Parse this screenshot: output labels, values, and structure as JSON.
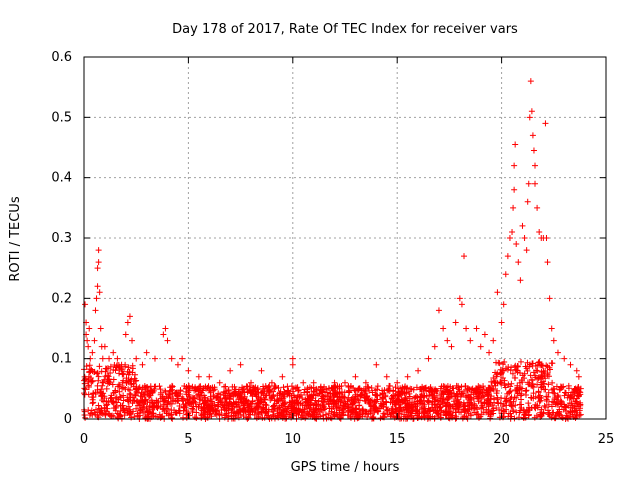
{
  "chart_data": {
    "type": "scatter",
    "title": "Day 178 of 2017, Rate Of TEC Index for receiver vars",
    "xlabel": "GPS time / hours",
    "ylabel": "ROTI / TECUs",
    "xlim": [
      0,
      25
    ],
    "ylim": [
      0,
      0.6
    ],
    "x_ticks": [
      0,
      5,
      10,
      15,
      20,
      25
    ],
    "x_tick_labels": [
      "0",
      "5",
      "10",
      "15",
      "20",
      "25"
    ],
    "y_ticks": [
      0,
      0.1,
      0.2,
      0.3,
      0.4,
      0.5,
      0.6
    ],
    "y_tick_labels": [
      "0",
      "0.1",
      "0.2",
      "0.3",
      "0.4",
      "0.5",
      "0.6"
    ],
    "grid": true,
    "marker": "+",
    "series_color": "#ff0000",
    "grid_color": "#a0a0a0",
    "series": [
      {
        "name": "ROTI",
        "generated_baseline": {
          "x_range": [
            0,
            23.8
          ],
          "y_range": [
            0,
            0.055
          ],
          "count": 2400
        },
        "points": [
          [
            0.05,
            0.19
          ],
          [
            0.1,
            0.16
          ],
          [
            0.1,
            0.14
          ],
          [
            0.15,
            0.13
          ],
          [
            0.2,
            0.12
          ],
          [
            0.25,
            0.15
          ],
          [
            0.3,
            0.1
          ],
          [
            0.4,
            0.11
          ],
          [
            0.5,
            0.13
          ],
          [
            0.55,
            0.18
          ],
          [
            0.6,
            0.2
          ],
          [
            0.65,
            0.22
          ],
          [
            0.65,
            0.25
          ],
          [
            0.7,
            0.26
          ],
          [
            0.7,
            0.28
          ],
          [
            0.75,
            0.21
          ],
          [
            0.8,
            0.15
          ],
          [
            0.85,
            0.12
          ],
          [
            0.9,
            0.1
          ],
          [
            1.0,
            0.12
          ],
          [
            1.2,
            0.1
          ],
          [
            1.4,
            0.11
          ],
          [
            1.6,
            0.1
          ],
          [
            1.8,
            0.09
          ],
          [
            2.0,
            0.14
          ],
          [
            2.1,
            0.16
          ],
          [
            2.2,
            0.17
          ],
          [
            2.3,
            0.13
          ],
          [
            2.5,
            0.1
          ],
          [
            2.8,
            0.09
          ],
          [
            3.0,
            0.11
          ],
          [
            3.4,
            0.1
          ],
          [
            3.8,
            0.14
          ],
          [
            3.9,
            0.15
          ],
          [
            4.0,
            0.13
          ],
          [
            4.2,
            0.1
          ],
          [
            4.5,
            0.09
          ],
          [
            4.7,
            0.1
          ],
          [
            5.0,
            0.08
          ],
          [
            5.5,
            0.07
          ],
          [
            6.0,
            0.07
          ],
          [
            6.5,
            0.06
          ],
          [
            7.0,
            0.08
          ],
          [
            7.5,
            0.09
          ],
          [
            8.0,
            0.06
          ],
          [
            8.5,
            0.08
          ],
          [
            9.0,
            0.06
          ],
          [
            9.5,
            0.07
          ],
          [
            10.0,
            0.1
          ],
          [
            10.0,
            0.09
          ],
          [
            10.5,
            0.06
          ],
          [
            11.0,
            0.06
          ],
          [
            11.5,
            0.05
          ],
          [
            12.0,
            0.06
          ],
          [
            12.5,
            0.06
          ],
          [
            13.0,
            0.07
          ],
          [
            13.5,
            0.06
          ],
          [
            14.0,
            0.09
          ],
          [
            14.5,
            0.07
          ],
          [
            15.0,
            0.06
          ],
          [
            15.5,
            0.07
          ],
          [
            16.0,
            0.08
          ],
          [
            16.5,
            0.1
          ],
          [
            16.8,
            0.12
          ],
          [
            17.0,
            0.18
          ],
          [
            17.2,
            0.15
          ],
          [
            17.4,
            0.13
          ],
          [
            17.6,
            0.12
          ],
          [
            17.8,
            0.16
          ],
          [
            18.0,
            0.2
          ],
          [
            18.1,
            0.19
          ],
          [
            18.2,
            0.27
          ],
          [
            18.3,
            0.15
          ],
          [
            18.5,
            0.13
          ],
          [
            18.8,
            0.15
          ],
          [
            19.0,
            0.12
          ],
          [
            19.2,
            0.14
          ],
          [
            19.4,
            0.11
          ],
          [
            19.6,
            0.13
          ],
          [
            19.8,
            0.21
          ],
          [
            20.0,
            0.16
          ],
          [
            20.1,
            0.19
          ],
          [
            20.2,
            0.24
          ],
          [
            20.3,
            0.27
          ],
          [
            20.4,
            0.3
          ],
          [
            20.5,
            0.31
          ],
          [
            20.55,
            0.35
          ],
          [
            20.6,
            0.38
          ],
          [
            20.6,
            0.42
          ],
          [
            20.65,
            0.455
          ],
          [
            20.7,
            0.29
          ],
          [
            20.8,
            0.26
          ],
          [
            20.9,
            0.23
          ],
          [
            21.0,
            0.32
          ],
          [
            21.1,
            0.3
          ],
          [
            21.2,
            0.28
          ],
          [
            21.25,
            0.36
          ],
          [
            21.3,
            0.39
          ],
          [
            21.35,
            0.5
          ],
          [
            21.4,
            0.56
          ],
          [
            21.45,
            0.51
          ],
          [
            21.5,
            0.47
          ],
          [
            21.55,
            0.445
          ],
          [
            21.6,
            0.42
          ],
          [
            21.6,
            0.39
          ],
          [
            21.7,
            0.35
          ],
          [
            21.8,
            0.31
          ],
          [
            21.9,
            0.3
          ],
          [
            22.0,
            0.3
          ],
          [
            22.1,
            0.49
          ],
          [
            22.15,
            0.3
          ],
          [
            22.2,
            0.26
          ],
          [
            22.3,
            0.2
          ],
          [
            22.4,
            0.15
          ],
          [
            22.5,
            0.13
          ],
          [
            22.7,
            0.11
          ],
          [
            23.0,
            0.1
          ],
          [
            23.3,
            0.09
          ],
          [
            23.6,
            0.08
          ],
          [
            23.7,
            0.07
          ]
        ]
      }
    ]
  }
}
